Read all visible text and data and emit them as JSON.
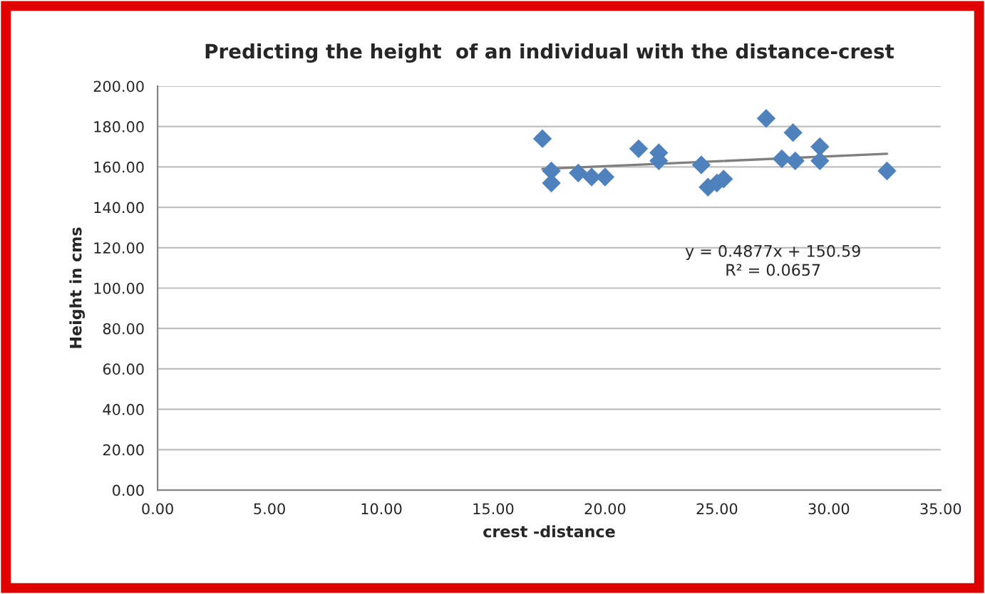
{
  "chart_data": {
    "type": "scatter",
    "title": "Predicting the height  of an individual with the distance-crest",
    "xlabel": "crest -distance",
    "ylabel": "Height in cms",
    "xlim": [
      0,
      35
    ],
    "xticks": [
      {
        "value": 0,
        "label": "0.00"
      },
      {
        "value": 5,
        "label": "5.00"
      },
      {
        "value": 10,
        "label": "10.00"
      },
      {
        "value": 15,
        "label": "15.00"
      },
      {
        "value": 20,
        "label": "20.00"
      },
      {
        "value": 25,
        "label": "25.00"
      },
      {
        "value": 30,
        "label": "30.00"
      },
      {
        "value": 35,
        "label": "35.00"
      }
    ],
    "ylim": [
      0,
      200
    ],
    "yticks": [
      {
        "value": 0,
        "label": "0.00"
      },
      {
        "value": 20,
        "label": "20.00"
      },
      {
        "value": 40,
        "label": "40.00"
      },
      {
        "value": 60,
        "label": "60.00"
      },
      {
        "value": 80,
        "label": "80.00"
      },
      {
        "value": 100,
        "label": "100.00"
      },
      {
        "value": 120,
        "label": "120.00"
      },
      {
        "value": 140,
        "label": "140.00"
      },
      {
        "value": 160,
        "label": "160.00"
      },
      {
        "value": 180,
        "label": "180.00"
      },
      {
        "value": 200,
        "label": "200.00"
      }
    ],
    "grid": "y",
    "legend": false,
    "series": [
      {
        "marker": "diamond",
        "color": "#4f81bd",
        "x": [
          17.2,
          17.6,
          17.6,
          18.8,
          19.4,
          20.0,
          21.5,
          22.4,
          22.4,
          24.3,
          24.6,
          25.0,
          25.3,
          27.2,
          27.9,
          28.4,
          28.5,
          29.6,
          29.6,
          32.6
        ],
        "values": [
          174,
          158,
          152,
          157,
          155,
          155,
          169,
          167,
          163,
          161,
          150,
          152,
          154,
          184,
          164,
          177,
          163,
          170,
          163,
          158
        ]
      },
      {
        "type": "line",
        "color": "#7f7f7f",
        "x": [
          17.2,
          32.6
        ],
        "values": [
          159.0,
          166.5
        ]
      }
    ],
    "annotations": [
      "y = 0.4877x + 150.59\nR² = 0.0657"
    ]
  }
}
